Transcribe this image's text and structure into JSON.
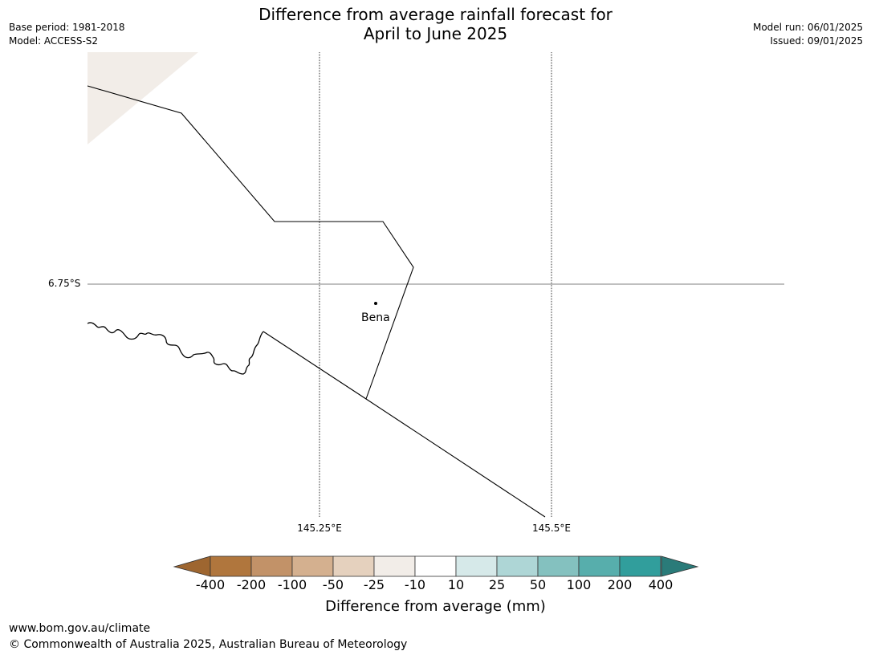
{
  "title_line1": "Difference from average rainfall forecast for",
  "title_line2": "April to June 2025",
  "meta_left": {
    "base_period": "Base period: 1981-2018",
    "model": "Model: ACCESS-S2"
  },
  "meta_right": {
    "model_run": "Model run: 06/01/2025",
    "issued": "Issued: 09/01/2025"
  },
  "map": {
    "lat_label": "6.75°S",
    "lon_labels": [
      "145.25°E",
      "145.5°E"
    ],
    "place": {
      "name": "Bena"
    }
  },
  "colorbar": {
    "title": "Difference from average (mm)",
    "ticks": [
      "-400",
      "-200",
      "-100",
      "-50",
      "-25",
      "-10",
      "10",
      "25",
      "50",
      "100",
      "200",
      "400"
    ],
    "colors": [
      "#9e6630",
      "#b0763d",
      "#c29268",
      "#d4b08f",
      "#e5d1be",
      "#f2ede8",
      "#ffffff",
      "#d6e9e9",
      "#aed6d6",
      "#84c1bf",
      "#57aeac",
      "#319e9c",
      "#2a7b79"
    ]
  },
  "footer": {
    "url": "www.bom.gov.au/climate",
    "copyright": "© Commonwealth of Australia 2025, Australian Bureau of Meteorology"
  }
}
